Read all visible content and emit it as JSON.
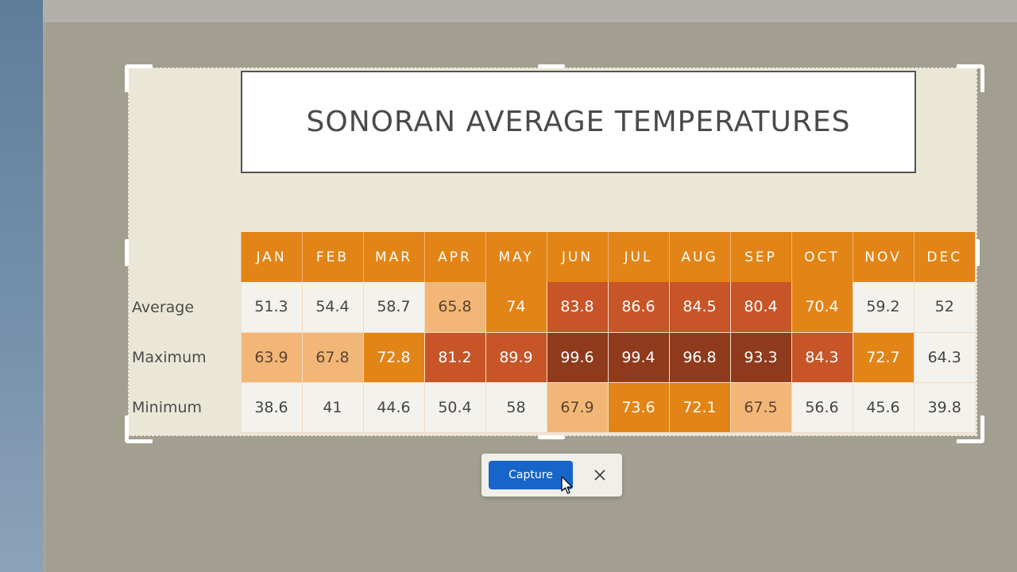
{
  "slide": {
    "title": "SONORAN AVERAGE TEMPERATURES"
  },
  "table": {
    "months": [
      "JAN",
      "FEB",
      "MAR",
      "APR",
      "MAY",
      "JUN",
      "JUL",
      "AUG",
      "SEP",
      "OCT",
      "NOV",
      "DEC"
    ],
    "rows": [
      {
        "label": "Average",
        "values": [
          "51.3",
          "54.4",
          "58.7",
          "65.8",
          "74",
          "83.8",
          "86.6",
          "84.5",
          "80.4",
          "70.4",
          "59.2",
          "52"
        ],
        "levels": [
          1,
          1,
          1,
          2,
          3,
          4,
          4,
          4,
          4,
          3,
          1,
          1
        ]
      },
      {
        "label": "Maximum",
        "values": [
          "63.9",
          "67.8",
          "72.8",
          "81.2",
          "89.9",
          "99.6",
          "99.4",
          "96.8",
          "93.3",
          "84.3",
          "72.7",
          "64.3"
        ],
        "levels": [
          2,
          2,
          3,
          4,
          4,
          5,
          5,
          5,
          5,
          4,
          3,
          1
        ]
      },
      {
        "label": "Minimum",
        "values": [
          "38.6",
          "41",
          "44.6",
          "50.4",
          "58",
          "67.9",
          "73.6",
          "72.1",
          "67.5",
          "56.6",
          "45.6",
          "39.8"
        ],
        "levels": [
          1,
          1,
          1,
          1,
          1,
          2,
          3,
          3,
          2,
          1,
          1,
          1
        ]
      }
    ]
  },
  "colors": {
    "header_orange": "#e38416",
    "pale": "#f4f2ed",
    "light_orange": "#f2b777",
    "orange": "#e38416",
    "rust": "#c75528",
    "dark_rust": "#8f3a1c",
    "capture_blue": "#1765c8"
  },
  "toolbar": {
    "capture_label": "Capture",
    "close_icon": "close-icon"
  }
}
